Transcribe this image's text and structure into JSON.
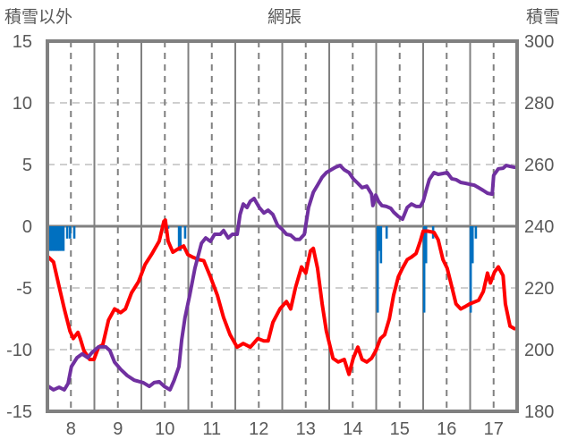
{
  "chart_data": {
    "type": "line",
    "title": "網張",
    "left_axis_label": "積雪以外",
    "right_axis_label": "積雪",
    "x_range": [
      7.5,
      17.5
    ],
    "x_ticks": [
      "8",
      "9",
      "10",
      "11",
      "12",
      "13",
      "14",
      "15",
      "16",
      "17"
    ],
    "left_ylim": [
      -15,
      15
    ],
    "left_ticks": [
      "15",
      "10",
      "5",
      "0",
      "-5",
      "-10",
      "-15"
    ],
    "right_ylim": [
      180,
      300
    ],
    "right_ticks": [
      "300",
      "280",
      "260",
      "240",
      "220",
      "200",
      "180"
    ],
    "grid": true,
    "colors": {
      "temp": "#FF0000",
      "snow": "#7030A0",
      "bars": "#0070C0",
      "frame": "#808080",
      "text": "#595959"
    },
    "series": [
      {
        "name": "red-line",
        "axis": "left",
        "color": "#FF0000",
        "points": [
          [
            7.52,
            -2.5
          ],
          [
            7.63,
            -2.9
          ],
          [
            7.75,
            -4.9
          ],
          [
            7.86,
            -6.7
          ],
          [
            7.98,
            -8.5
          ],
          [
            8.05,
            -9.1
          ],
          [
            8.15,
            -8.6
          ],
          [
            8.2,
            -9.1
          ],
          [
            8.28,
            -10.1
          ],
          [
            8.4,
            -10.8
          ],
          [
            8.49,
            -10.8
          ],
          [
            8.59,
            -9.8
          ],
          [
            8.68,
            -9.6
          ],
          [
            8.8,
            -7.6
          ],
          [
            8.93,
            -6.7
          ],
          [
            9.06,
            -7.0
          ],
          [
            9.16,
            -6.7
          ],
          [
            9.29,
            -5.4
          ],
          [
            9.44,
            -4.5
          ],
          [
            9.58,
            -3.1
          ],
          [
            9.73,
            -2.2
          ],
          [
            9.88,
            -1.2
          ],
          [
            9.98,
            0.4
          ],
          [
            10.01,
            0.5
          ],
          [
            10.07,
            -1.2
          ],
          [
            10.17,
            -2.1
          ],
          [
            10.3,
            -1.8
          ],
          [
            10.4,
            -1.6
          ],
          [
            10.49,
            -2.3
          ],
          [
            10.59,
            -2.5
          ],
          [
            10.72,
            -2.7
          ],
          [
            10.83,
            -2.8
          ],
          [
            10.97,
            -4.1
          ],
          [
            11.12,
            -5.6
          ],
          [
            11.25,
            -7.4
          ],
          [
            11.39,
            -8.8
          ],
          [
            11.54,
            -9.8
          ],
          [
            11.67,
            -9.5
          ],
          [
            11.82,
            -9.8
          ],
          [
            11.98,
            -9.1
          ],
          [
            12.11,
            -9.3
          ],
          [
            12.2,
            -9.3
          ],
          [
            12.3,
            -7.8
          ],
          [
            12.45,
            -6.7
          ],
          [
            12.59,
            -6.1
          ],
          [
            12.68,
            -6.7
          ],
          [
            12.78,
            -5.0
          ],
          [
            12.91,
            -3.3
          ],
          [
            13.0,
            -3.8
          ],
          [
            13.1,
            -2.0
          ],
          [
            13.16,
            -1.8
          ],
          [
            13.25,
            -3.4
          ],
          [
            13.35,
            -6.3
          ],
          [
            13.44,
            -8.5
          ],
          [
            13.58,
            -10.7
          ],
          [
            13.69,
            -11.0
          ],
          [
            13.82,
            -10.8
          ],
          [
            13.92,
            -12.0
          ],
          [
            14.01,
            -10.7
          ],
          [
            14.11,
            -9.8
          ],
          [
            14.2,
            -10.8
          ],
          [
            14.3,
            -11.0
          ],
          [
            14.4,
            -10.7
          ],
          [
            14.49,
            -10.1
          ],
          [
            14.59,
            -9.1
          ],
          [
            14.68,
            -8.8
          ],
          [
            14.78,
            -7.5
          ],
          [
            14.87,
            -5.6
          ],
          [
            14.97,
            -4.1
          ],
          [
            15.06,
            -3.4
          ],
          [
            15.16,
            -2.7
          ],
          [
            15.25,
            -2.5
          ],
          [
            15.35,
            -2.2
          ],
          [
            15.44,
            -1.2
          ],
          [
            15.5,
            -0.4
          ],
          [
            15.6,
            -0.4
          ],
          [
            15.73,
            -0.5
          ],
          [
            15.82,
            -1.1
          ],
          [
            15.92,
            -2.7
          ],
          [
            16.01,
            -3.4
          ],
          [
            16.11,
            -4.9
          ],
          [
            16.2,
            -6.3
          ],
          [
            16.3,
            -6.7
          ],
          [
            16.4,
            -6.5
          ],
          [
            16.49,
            -6.3
          ],
          [
            16.68,
            -6.0
          ],
          [
            16.78,
            -5.3
          ],
          [
            16.87,
            -3.8
          ],
          [
            16.93,
            -4.6
          ],
          [
            17.02,
            -3.7
          ],
          [
            17.1,
            -3.3
          ],
          [
            17.2,
            -4.0
          ],
          [
            17.25,
            -6.3
          ],
          [
            17.35,
            -8.1
          ],
          [
            17.44,
            -8.3
          ]
        ]
      },
      {
        "name": "purple-line",
        "axis": "right",
        "color": "#7030A0",
        "points": [
          [
            7.52,
            188.1
          ],
          [
            7.63,
            187.0
          ],
          [
            7.75,
            187.8
          ],
          [
            7.86,
            187.0
          ],
          [
            7.94,
            189.0
          ],
          [
            8.01,
            194.5
          ],
          [
            8.13,
            197.4
          ],
          [
            8.24,
            198.6
          ],
          [
            8.36,
            197.4
          ],
          [
            8.45,
            199.1
          ],
          [
            8.59,
            200.9
          ],
          [
            8.74,
            200.9
          ],
          [
            8.83,
            199.7
          ],
          [
            8.93,
            195.9
          ],
          [
            9.06,
            193.6
          ],
          [
            9.2,
            191.6
          ],
          [
            9.35,
            190.1
          ],
          [
            9.54,
            189.3
          ],
          [
            9.67,
            188.1
          ],
          [
            9.77,
            189.3
          ],
          [
            9.88,
            189.6
          ],
          [
            9.99,
            188.1
          ],
          [
            10.11,
            187.0
          ],
          [
            10.2,
            190.1
          ],
          [
            10.3,
            194.5
          ],
          [
            10.36,
            203.2
          ],
          [
            10.43,
            210.4
          ],
          [
            10.53,
            217.7
          ],
          [
            10.64,
            226.4
          ],
          [
            10.78,
            234.5
          ],
          [
            10.87,
            236.2
          ],
          [
            10.97,
            235.1
          ],
          [
            11.06,
            237.4
          ],
          [
            11.18,
            237.4
          ],
          [
            11.25,
            238.6
          ],
          [
            11.35,
            236.2
          ],
          [
            11.44,
            237.4
          ],
          [
            11.54,
            237.4
          ],
          [
            11.6,
            243.8
          ],
          [
            11.67,
            247.2
          ],
          [
            11.75,
            246.1
          ],
          [
            11.82,
            248.1
          ],
          [
            11.9,
            249.0
          ],
          [
            12.01,
            246.1
          ],
          [
            12.11,
            244.3
          ],
          [
            12.2,
            245.2
          ],
          [
            12.3,
            243.8
          ],
          [
            12.4,
            240.3
          ],
          [
            12.49,
            239.1
          ],
          [
            12.59,
            237.4
          ],
          [
            12.68,
            237.1
          ],
          [
            12.78,
            235.7
          ],
          [
            12.87,
            235.7
          ],
          [
            12.97,
            237.4
          ],
          [
            13.06,
            246.1
          ],
          [
            13.16,
            251.0
          ],
          [
            13.25,
            253.3
          ],
          [
            13.35,
            255.9
          ],
          [
            13.44,
            257.4
          ],
          [
            13.54,
            258.3
          ],
          [
            13.63,
            259.1
          ],
          [
            13.73,
            259.7
          ],
          [
            13.82,
            258.3
          ],
          [
            13.92,
            257.4
          ],
          [
            14.01,
            255.4
          ],
          [
            14.11,
            253.9
          ],
          [
            14.2,
            252.5
          ],
          [
            14.3,
            253.0
          ],
          [
            14.4,
            250.4
          ],
          [
            14.43,
            246.7
          ],
          [
            14.49,
            250.1
          ],
          [
            14.55,
            248.1
          ],
          [
            14.62,
            246.7
          ],
          [
            14.72,
            246.4
          ],
          [
            14.81,
            245.8
          ],
          [
            14.87,
            244.6
          ],
          [
            14.97,
            243.2
          ],
          [
            15.06,
            242.3
          ],
          [
            15.16,
            246.1
          ],
          [
            15.25,
            247.2
          ],
          [
            15.35,
            246.4
          ],
          [
            15.44,
            246.4
          ],
          [
            15.5,
            248.1
          ],
          [
            15.58,
            252.5
          ],
          [
            15.63,
            255.1
          ],
          [
            15.73,
            257.4
          ],
          [
            15.82,
            256.8
          ],
          [
            15.92,
            257.1
          ],
          [
            16.01,
            257.4
          ],
          [
            16.11,
            255.4
          ],
          [
            16.2,
            255.1
          ],
          [
            16.3,
            254.2
          ],
          [
            16.4,
            253.9
          ],
          [
            16.49,
            253.6
          ],
          [
            16.59,
            253.3
          ],
          [
            16.68,
            252.5
          ],
          [
            16.78,
            251.6
          ],
          [
            16.87,
            250.7
          ],
          [
            16.97,
            250.4
          ],
          [
            17.0,
            256.5
          ],
          [
            17.1,
            258.6
          ],
          [
            17.2,
            258.8
          ],
          [
            17.27,
            259.7
          ],
          [
            17.35,
            259.4
          ],
          [
            17.44,
            259.1
          ]
        ]
      }
    ],
    "bars": {
      "name": "blue-bars",
      "axis": "left",
      "color": "#0070C0",
      "points": [
        [
          7.52,
          -2.0
        ],
        [
          7.56,
          -2.0
        ],
        [
          7.6,
          -2.0
        ],
        [
          7.64,
          -2.0
        ],
        [
          7.68,
          -2.0
        ],
        [
          7.72,
          -2.0
        ],
        [
          7.76,
          -2.0
        ],
        [
          7.8,
          -2.0
        ],
        [
          7.84,
          -2.0
        ],
        [
          7.92,
          -1.0
        ],
        [
          7.98,
          -1.0
        ],
        [
          8.07,
          -1.0
        ],
        [
          10.07,
          -0.2
        ],
        [
          10.3,
          -2.0
        ],
        [
          10.33,
          -2.0
        ],
        [
          10.43,
          -1.0
        ],
        [
          14.53,
          -7.0
        ],
        [
          14.57,
          -2.0
        ],
        [
          14.6,
          -3.0
        ],
        [
          14.72,
          -1.0
        ],
        [
          15.52,
          -7.0
        ],
        [
          15.56,
          -3.0
        ],
        [
          15.71,
          -1.0
        ],
        [
          16.51,
          -7.0
        ],
        [
          16.55,
          -3.0
        ],
        [
          16.62,
          -1.0
        ]
      ]
    }
  }
}
